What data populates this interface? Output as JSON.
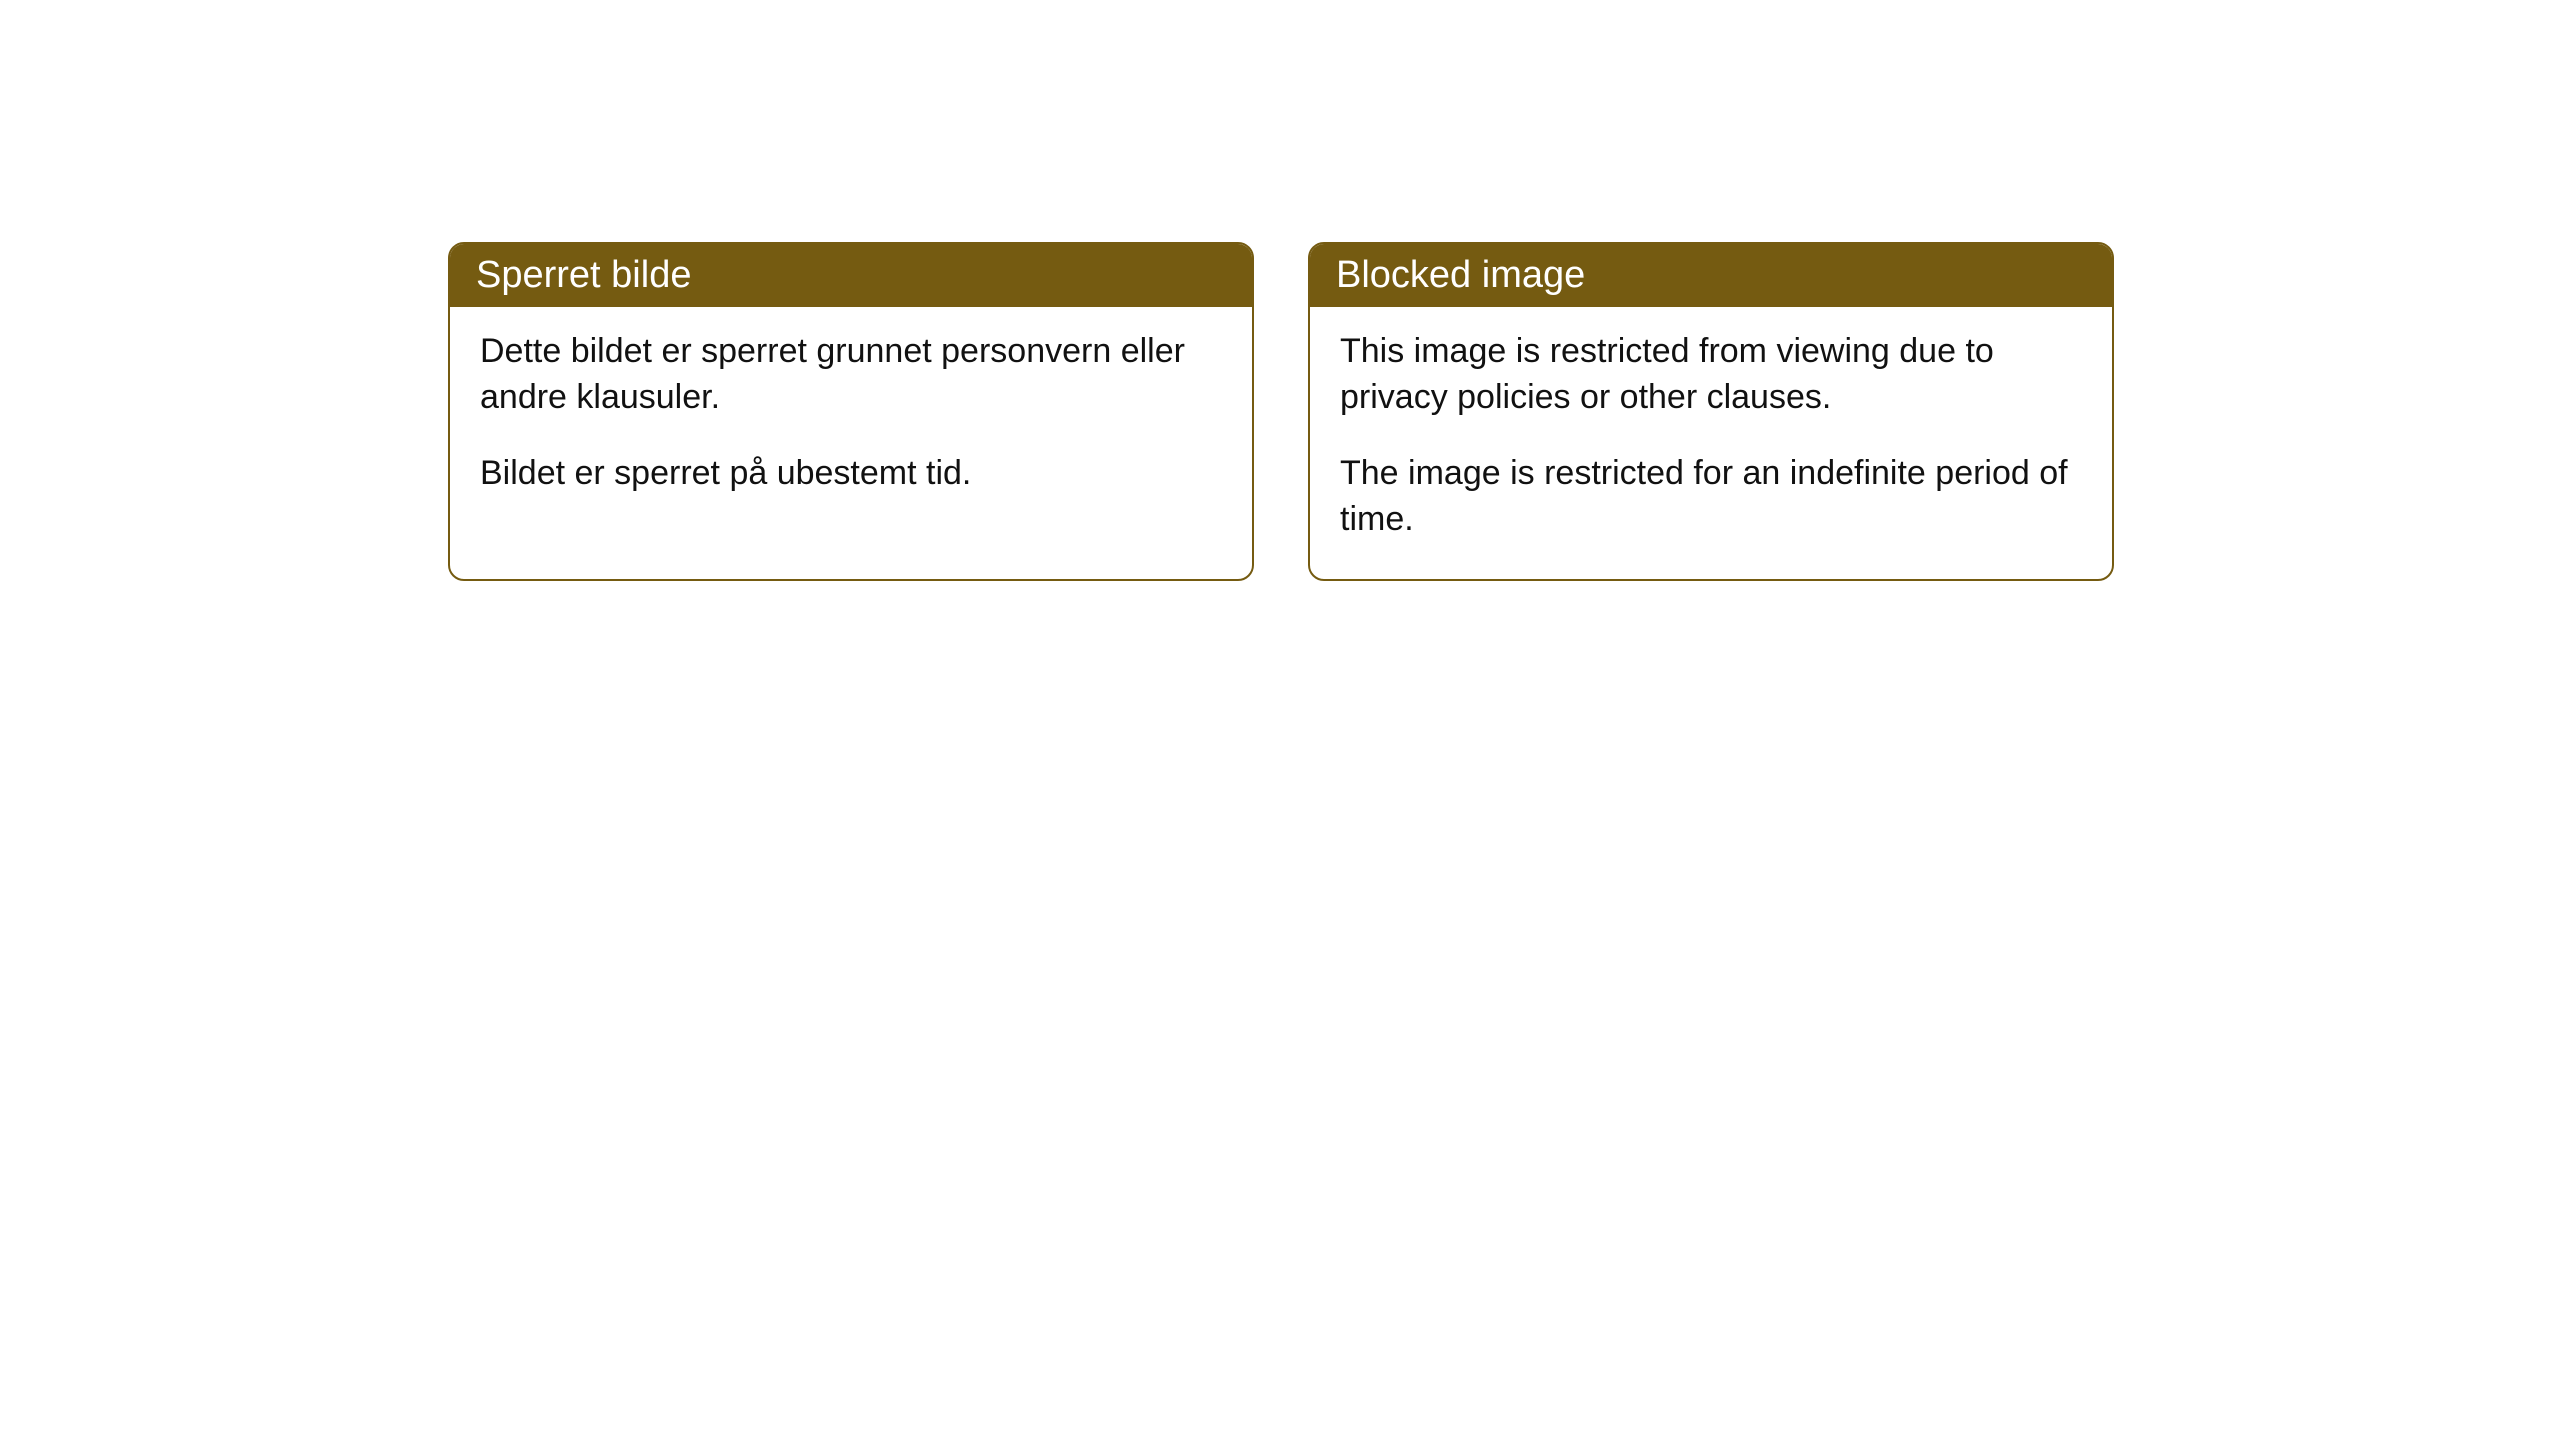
{
  "cards": [
    {
      "title": "Sperret bilde",
      "paragraph1": "Dette bildet er sperret grunnet personvern eller andre klausuler.",
      "paragraph2": "Bildet er sperret på ubestemt tid."
    },
    {
      "title": "Blocked image",
      "paragraph1": "This image is restricted from viewing due to privacy policies or other clauses.",
      "paragraph2": "The image is restricted for an indefinite period of time."
    }
  ],
  "style": {
    "header_bg": "#755b11",
    "header_text_color": "#ffffff",
    "border_color": "#755b11",
    "body_bg": "#ffffff",
    "body_text_color": "#111111",
    "border_radius": 16,
    "header_fontsize": 38,
    "body_fontsize": 34
  }
}
